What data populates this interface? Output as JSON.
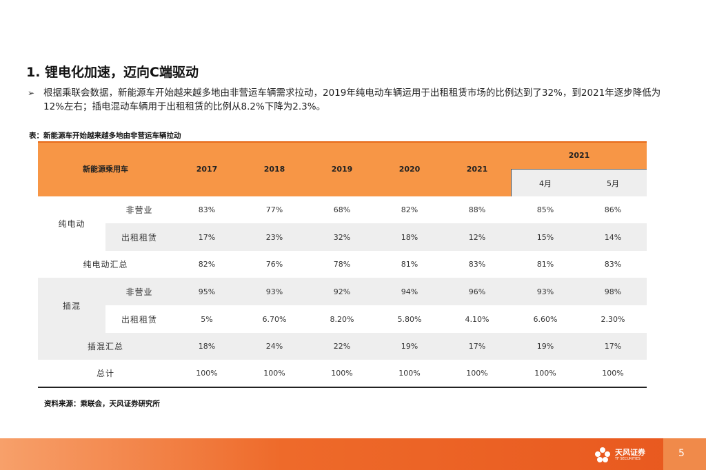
{
  "section_title": "1. 锂电化加速，迈向C端驱动",
  "bullet_mark": "➢",
  "bullet_text": "根据乘联会数据，新能源车开始越来越多地由非营运车辆需求拉动，2019年纯电动车辆运用于出租租赁市场的比例达到了32%，到2021年逐步降低为12%左右；插电混动车辆用于出租租赁的比例从8.2%下降为2.3%。",
  "table_caption": "表：新能源车开始越来越多地由非营运车辆拉动",
  "table": {
    "corner_header": "新能源乘用车",
    "years": [
      "2017",
      "2018",
      "2019",
      "2020",
      "2021"
    ],
    "group_header": "2021",
    "months": [
      "4月",
      "5月"
    ],
    "rows": [
      {
        "group": "纯电动",
        "label": "非营业",
        "values": [
          "83%",
          "77%",
          "68%",
          "82%",
          "88%",
          "85%",
          "86%"
        ]
      },
      {
        "group": "",
        "label": "出租租赁",
        "values": [
          "17%",
          "23%",
          "32%",
          "18%",
          "12%",
          "15%",
          "14%"
        ]
      },
      {
        "group": "",
        "label": "纯电动汇总",
        "values": [
          "82%",
          "76%",
          "78%",
          "81%",
          "83%",
          "81%",
          "83%"
        ]
      },
      {
        "group": "插混",
        "label": "非营业",
        "values": [
          "95%",
          "93%",
          "92%",
          "94%",
          "96%",
          "93%",
          "98%"
        ]
      },
      {
        "group": "",
        "label": "出租租赁",
        "values": [
          "5%",
          "6.70%",
          "8.20%",
          "5.80%",
          "4.10%",
          "6.60%",
          "2.30%"
        ]
      },
      {
        "group": "",
        "label": "插混汇总",
        "values": [
          "18%",
          "24%",
          "22%",
          "19%",
          "17%",
          "19%",
          "17%"
        ]
      },
      {
        "group": "",
        "label": "总计",
        "values": [
          "100%",
          "100%",
          "100%",
          "100%",
          "100%",
          "100%",
          "100%"
        ]
      }
    ]
  },
  "source_note": "资料来源：乘联会，天风证券研究所",
  "footer": {
    "logo_name": "天风证券",
    "logo_sub": "TF SECURITIES",
    "page_number": "5",
    "colors": {
      "accent": "#E8581E",
      "header": "#F79646"
    }
  }
}
